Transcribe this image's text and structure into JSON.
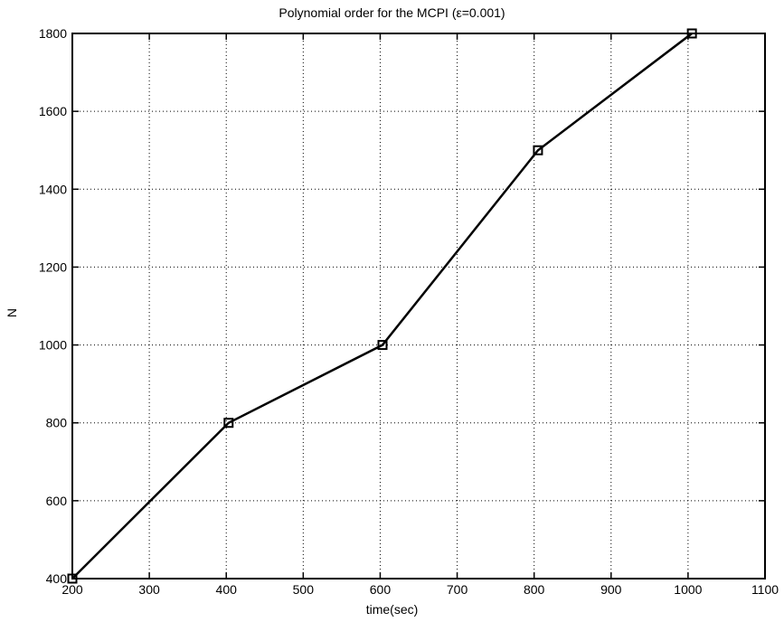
{
  "chart_data": {
    "type": "line",
    "title": "Polynomial order for the MCPI (ε=0.001)",
    "xlabel": "time(sec)",
    "ylabel": "N",
    "xlim": [
      200,
      1100
    ],
    "ylim": [
      400,
      1800
    ],
    "xticks": [
      200,
      300,
      400,
      500,
      600,
      700,
      800,
      900,
      1000,
      1100
    ],
    "yticks": [
      400,
      600,
      800,
      1000,
      1200,
      1400,
      1600,
      1800
    ],
    "grid": true,
    "grid_style": "dotted",
    "series": [
      {
        "marker": "square",
        "color": "#000000",
        "x": [
          200,
          403,
          603,
          805,
          1005
        ],
        "y": [
          400,
          800,
          1000,
          1500,
          1800
        ]
      }
    ]
  }
}
